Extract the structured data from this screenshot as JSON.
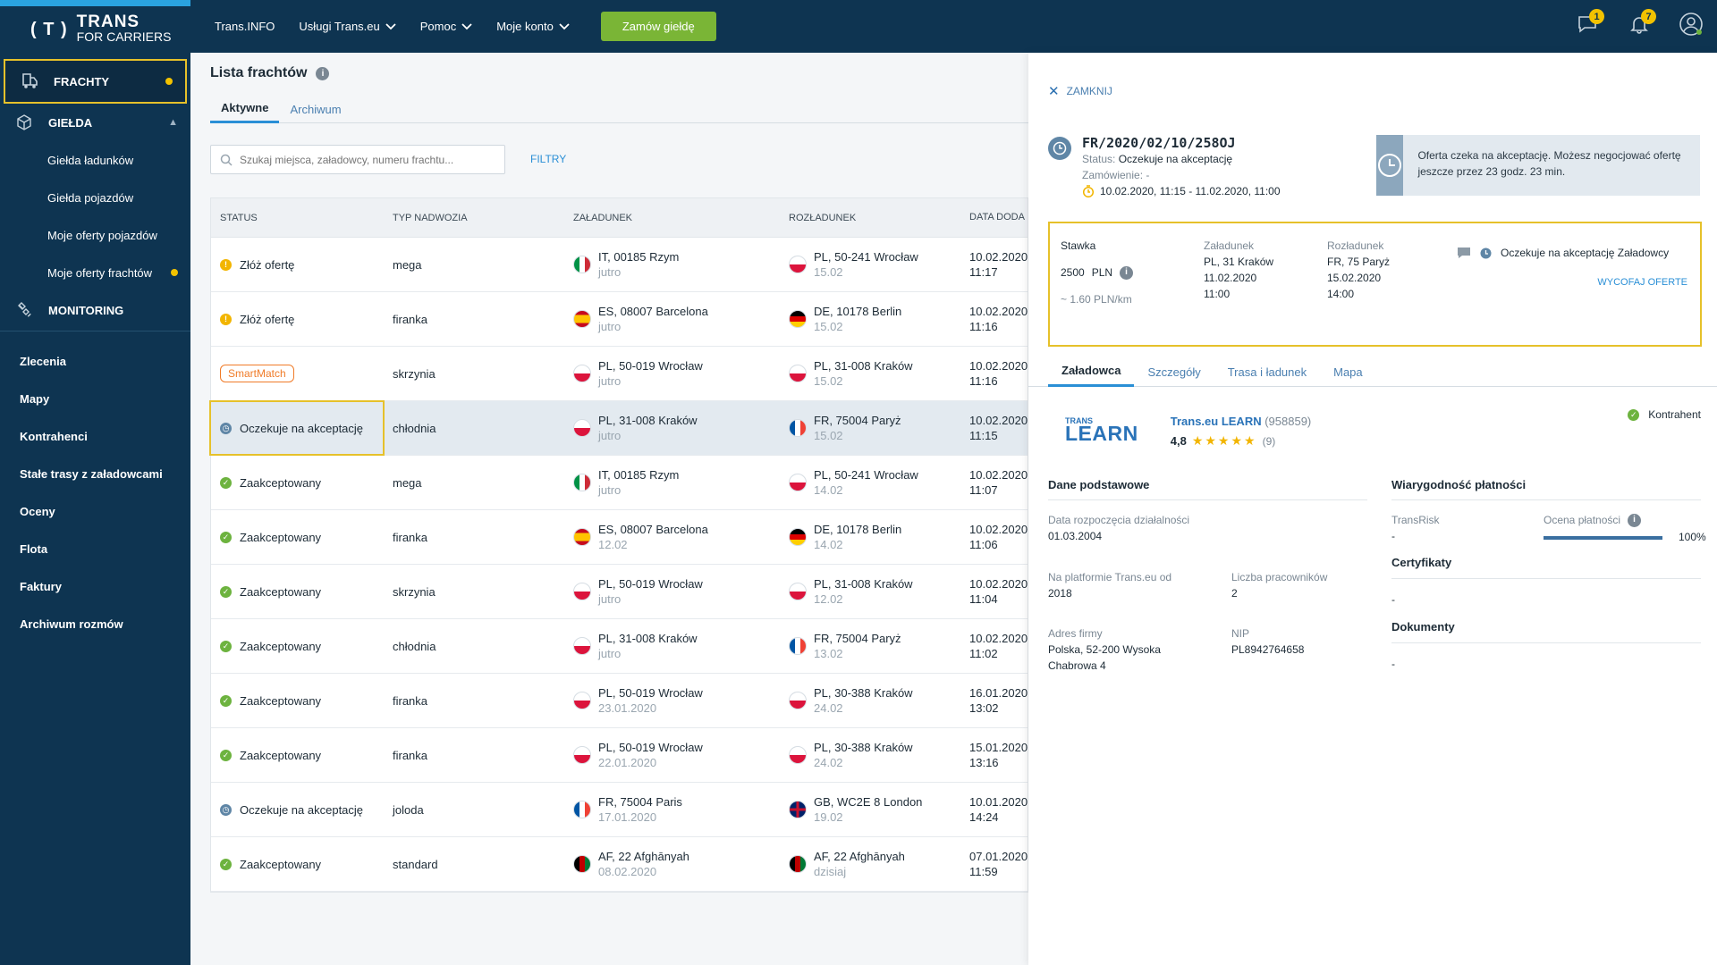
{
  "sidebar": {
    "logo_t": "( T )",
    "logo_a": "TRANS",
    "logo_b": "FOR CARRIERS",
    "frachty": "FRACHTY",
    "gielda": "GIEŁDA",
    "sub": [
      "Giełda ładunków",
      "Giełda pojazdów",
      "Moje oferty pojazdów",
      "Moje oferty frachtów"
    ],
    "monitoring": "MONITORING",
    "plain": [
      "Zlecenia",
      "Mapy",
      "Kontrahenci",
      "Stałe trasy z załadowcami",
      "Oceny",
      "Flota",
      "Faktury",
      "Archiwum rozmów"
    ]
  },
  "topbar": {
    "links": [
      "Trans.INFO",
      "Usługi Trans.eu",
      "Pomoc",
      "Moje konto"
    ],
    "order_btn": "Zamów giełdę",
    "badge_messages": "1",
    "badge_notifications": "7"
  },
  "list": {
    "title": "Lista frachtów",
    "tabs": [
      "Aktywne",
      "Archiwum"
    ],
    "search_placeholder": "Szukaj miejsca, załadowcy, numeru frachtu...",
    "filters": "FILTRY",
    "headers": [
      "STATUS",
      "TYP NADWOZIA",
      "ZAŁADUNEK",
      "ROZŁADUNEK",
      "DATA DODA"
    ],
    "rows": [
      {
        "status": "Złóż ofertę",
        "kind": "warn",
        "body": "mega",
        "from": "IT, 00185 Rzym",
        "from_d": "jutro",
        "from_flag": "it",
        "to": "PL, 50-241 Wrocław",
        "to_d": "15.02",
        "to_flag": "pl",
        "date": "10.02.2020",
        "time": "11:17"
      },
      {
        "status": "Złóż ofertę",
        "kind": "warn",
        "body": "firanka",
        "from": "ES, 08007 Barcelona",
        "from_d": "jutro",
        "from_flag": "es",
        "to": "DE, 10178 Berlin",
        "to_d": "15.02",
        "to_flag": "de",
        "date": "10.02.2020",
        "time": "11:16"
      },
      {
        "status": "SmartMatch",
        "kind": "smart",
        "body": "skrzynia",
        "from": "PL, 50-019 Wrocław",
        "from_d": "jutro",
        "from_flag": "pl",
        "to": "PL, 31-008 Kraków",
        "to_d": "15.02",
        "to_flag": "pl",
        "date": "10.02.2020",
        "time": "11:16"
      },
      {
        "status": "Oczekuje na akceptację",
        "kind": "wait",
        "body": "chłodnia",
        "from": "PL, 31-008 Kraków",
        "from_d": "jutro",
        "from_flag": "pl",
        "to": "FR, 75004 Paryż",
        "to_d": "15.02",
        "to_flag": "fr",
        "date": "10.02.2020",
        "time": "11:15",
        "selected": true
      },
      {
        "status": "Zaakceptowany",
        "kind": "ok",
        "body": "mega",
        "from": "IT, 00185 Rzym",
        "from_d": "jutro",
        "from_flag": "it",
        "to": "PL, 50-241 Wrocław",
        "to_d": "14.02",
        "to_flag": "pl",
        "date": "10.02.2020",
        "time": "11:07"
      },
      {
        "status": "Zaakceptowany",
        "kind": "ok",
        "body": "firanka",
        "from": "ES, 08007 Barcelona",
        "from_d": "12.02",
        "from_flag": "es",
        "to": "DE, 10178 Berlin",
        "to_d": "14.02",
        "to_flag": "de",
        "date": "10.02.2020",
        "time": "11:06"
      },
      {
        "status": "Zaakceptowany",
        "kind": "ok",
        "body": "skrzynia",
        "from": "PL, 50-019 Wrocław",
        "from_d": "jutro",
        "from_flag": "pl",
        "to": "PL, 31-008 Kraków",
        "to_d": "12.02",
        "to_flag": "pl",
        "date": "10.02.2020",
        "time": "11:04"
      },
      {
        "status": "Zaakceptowany",
        "kind": "ok",
        "body": "chłodnia",
        "from": "PL, 31-008 Kraków",
        "from_d": "jutro",
        "from_flag": "pl",
        "to": "FR, 75004 Paryż",
        "to_d": "13.02",
        "to_flag": "fr",
        "date": "10.02.2020",
        "time": "11:02"
      },
      {
        "status": "Zaakceptowany",
        "kind": "ok",
        "body": "firanka",
        "from": "PL, 50-019 Wrocław",
        "from_d": "23.01.2020",
        "from_flag": "pl",
        "to": "PL, 30-388 Kraków",
        "to_d": "24.02",
        "to_flag": "pl",
        "date": "16.01.2020",
        "time": "13:02"
      },
      {
        "status": "Zaakceptowany",
        "kind": "ok",
        "body": "firanka",
        "from": "PL, 50-019 Wrocław",
        "from_d": "22.01.2020",
        "from_flag": "pl",
        "to": "PL, 30-388 Kraków",
        "to_d": "24.02",
        "to_flag": "pl",
        "date": "15.01.2020",
        "time": "13:16"
      },
      {
        "status": "Oczekuje na akceptację",
        "kind": "wait",
        "body": "joloda",
        "from": "FR, 75004 Paris",
        "from_d": "17.01.2020",
        "from_flag": "fr",
        "to": "GB, WC2E 8 London",
        "to_d": "19.02",
        "to_flag": "gb",
        "date": "10.01.2020",
        "time": "14:24"
      },
      {
        "status": "Zaakceptowany",
        "kind": "ok",
        "body": "standard",
        "from": "AF, 22 Afghānyah",
        "from_d": "08.02.2020",
        "from_flag": "af",
        "to": "AF, 22 Afghānyah",
        "to_d": "dzisiaj",
        "to_flag": "af",
        "date": "07.01.2020",
        "time": "11:59"
      }
    ]
  },
  "panel": {
    "close": "ZAMKNIJ",
    "fr_number": "FR/2020/02/10/258OJ",
    "status_label": "Status:",
    "status_value": "Oczekuje na akceptację",
    "order_label": "Zamówienie:",
    "order_value": "-",
    "dates": "10.02.2020, 11:15 - 11.02.2020, 11:00",
    "notice": "Oferta czeka na akceptację. Możesz negocjować ofertę jeszcze przez 23 godz. 23 min.",
    "offer": {
      "rate_label": "Stawka",
      "rate_value": "2500",
      "rate_currency": "PLN",
      "per_km": "~ 1.60 PLN/km",
      "load_label": "Załadunek",
      "load_place": "PL, 31 Kraków",
      "load_date": "11.02.2020",
      "load_time": "11:00",
      "unload_label": "Rozładunek",
      "unload_place": "FR, 75 Paryż",
      "unload_date": "15.02.2020",
      "unload_time": "14:00",
      "status": "Oczekuje na akceptację Załadowcy",
      "withdraw": "WYCOFAJ OFERTE"
    },
    "tabs": [
      "Załadowca",
      "Szczegóły",
      "Trasa i ładunek",
      "Mapa"
    ],
    "company": {
      "logo_small": "TRANS",
      "logo_big": "LEARN",
      "name": "Trans.eu LEARN",
      "id": "(958859)",
      "rating": "4,8",
      "stars": "★★★★★",
      "count": "(9)",
      "kontrahent": "Kontrahent"
    },
    "basic": {
      "title": "Dane podstawowe",
      "start_label": "Data rozpoczęcia działalności",
      "start_value": "01.03.2004",
      "since_label": "Na platformie Trans.eu od",
      "since_value": "2018",
      "workers_label": "Liczba pracowników",
      "workers_value": "2",
      "addr_label": "Adres firmy",
      "addr_value1": "Polska, 52-200 Wysoka",
      "addr_value2": "Chabrowa 4",
      "nip_label": "NIP",
      "nip_value": "PL8942764658"
    },
    "pay": {
      "title": "Wiarygodność płatności",
      "transrisk_label": "TransRisk",
      "transrisk_value": "-",
      "score_label": "Ocena płatności",
      "score_value": "100%",
      "score_fraction": 1.0
    },
    "certs": {
      "title": "Certyfikaty",
      "value": "-"
    },
    "docs": {
      "title": "Dokumenty",
      "value": "-"
    }
  }
}
